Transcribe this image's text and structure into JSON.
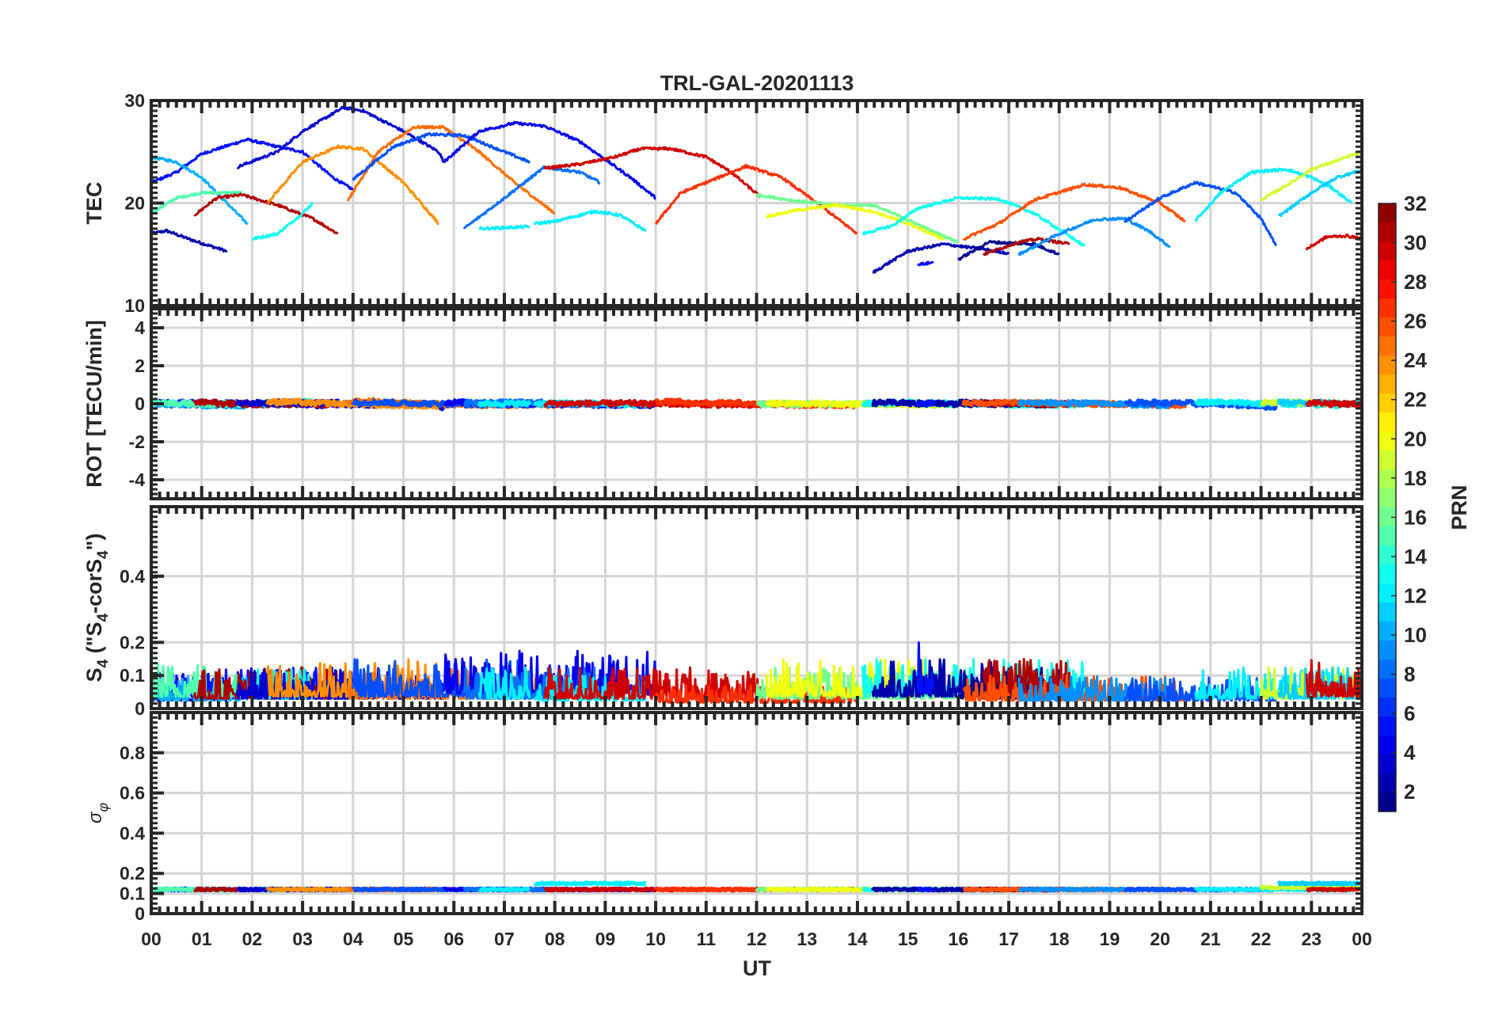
{
  "chart_data": {
    "type": "line",
    "title": "TRL-GAL-20201113",
    "xlabel": "UT",
    "xlim": [
      0,
      24
    ],
    "x_tick_labels": [
      "00",
      "01",
      "02",
      "03",
      "04",
      "05",
      "06",
      "07",
      "08",
      "09",
      "10",
      "11",
      "12",
      "13",
      "14",
      "15",
      "16",
      "17",
      "18",
      "19",
      "20",
      "21",
      "22",
      "23",
      "00"
    ],
    "grid": true,
    "panels": [
      {
        "id": "tec",
        "ylabel": "TEC",
        "ylim": [
          10,
          30
        ],
        "yticks": [
          10,
          20,
          30
        ]
      },
      {
        "id": "rot",
        "ylabel": "ROT [TECU/min]",
        "ylim": [
          -5,
          5
        ],
        "yticks": [
          -4,
          -2,
          0,
          2,
          4
        ]
      },
      {
        "id": "s4",
        "ylabel": "S4 (\"S4-corS4\")",
        "ylim": [
          0,
          0.61
        ],
        "yticks": [
          0,
          0.1,
          0.2,
          0.4
        ]
      },
      {
        "id": "sigma",
        "ylabel": "σφ",
        "ylim": [
          0,
          1
        ],
        "yticks": [
          0,
          0.1,
          0.2,
          0.4,
          0.6,
          0.8
        ]
      }
    ],
    "colorbar": {
      "label": "PRN",
      "range": [
        1,
        32
      ],
      "ticks": [
        2,
        4,
        6,
        8,
        10,
        12,
        14,
        16,
        18,
        20,
        22,
        24,
        26,
        28,
        30,
        32
      ],
      "colormap": "jet"
    },
    "series": [
      {
        "prn": 2,
        "s4": 0.04,
        "sigma": 0.12,
        "tec": [
          [
            0,
            17
          ],
          [
            0.3,
            17.3
          ],
          [
            0.8,
            16.4
          ],
          [
            1.5,
            15.3
          ]
        ]
      },
      {
        "prn": 5,
        "s4": 0.05,
        "sigma": 0.12,
        "tec": [
          [
            0,
            22
          ],
          [
            0.5,
            23
          ],
          [
            1,
            24.8
          ],
          [
            1.9,
            26.2
          ],
          [
            2.5,
            25.5
          ],
          [
            3,
            25
          ],
          [
            3.6,
            22.5
          ],
          [
            4,
            21.3
          ]
        ]
      },
      {
        "prn": 10,
        "s4": 0.04,
        "sigma": 0.12,
        "tec": [
          [
            0,
            24.5
          ],
          [
            0.5,
            24
          ],
          [
            1,
            22.5
          ],
          [
            1.5,
            20
          ],
          [
            1.9,
            18
          ]
        ]
      },
      {
        "prn": 15,
        "s4": 0.06,
        "sigma": 0.12,
        "tec": [
          [
            0,
            19
          ],
          [
            0.5,
            20.5
          ],
          [
            1,
            21
          ],
          [
            1.8,
            21
          ]
        ]
      },
      {
        "prn": 31,
        "s4": 0.05,
        "sigma": 0.12,
        "tec": [
          [
            0.85,
            18.8
          ],
          [
            1.3,
            20.5
          ],
          [
            1.8,
            20.8
          ],
          [
            2.5,
            19.8
          ],
          [
            3.2,
            18.5
          ],
          [
            3.7,
            17
          ]
        ]
      },
      {
        "prn": 13,
        "s4": 0.05,
        "sigma": 0.12,
        "tec": [
          [
            2,
            16.5
          ],
          [
            2.5,
            17
          ],
          [
            3,
            19
          ],
          [
            3.2,
            20
          ]
        ]
      },
      {
        "prn": 3,
        "s4": 0.05,
        "sigma": 0.12,
        "tec": [
          [
            1.7,
            23.5
          ],
          [
            2.5,
            25
          ],
          [
            3,
            27
          ],
          [
            3.8,
            29.3
          ],
          [
            4.2,
            29
          ],
          [
            5,
            27
          ],
          [
            5.7,
            25
          ],
          [
            5.8,
            24
          ]
        ]
      },
      {
        "prn": 24,
        "s4": 0.06,
        "sigma": 0.12,
        "tec": [
          [
            2.3,
            20
          ],
          [
            3,
            24
          ],
          [
            3.7,
            25.5
          ],
          [
            4.2,
            25.3
          ],
          [
            5,
            22
          ],
          [
            5.7,
            18
          ]
        ]
      },
      {
        "prn": 25,
        "s4": 0.05,
        "sigma": 0.12,
        "tec": [
          [
            3.9,
            20.3
          ],
          [
            4.5,
            25
          ],
          [
            5.2,
            27.4
          ],
          [
            5.8,
            27.4
          ],
          [
            6.5,
            25
          ],
          [
            7.2,
            22
          ],
          [
            8,
            19
          ]
        ]
      },
      {
        "prn": 7,
        "s4": 0.06,
        "sigma": 0.12,
        "tec": [
          [
            4,
            22.3
          ],
          [
            4.8,
            25.5
          ],
          [
            5.5,
            26.7
          ],
          [
            6.2,
            26.6
          ],
          [
            7,
            25
          ],
          [
            7.5,
            24
          ]
        ]
      },
      {
        "prn": 4,
        "s4": 0.07,
        "sigma": 0.12,
        "tec": [
          [
            5.8,
            24
          ],
          [
            6.5,
            27
          ],
          [
            7.2,
            27.8
          ],
          [
            7.8,
            27.5
          ],
          [
            8.5,
            26
          ],
          [
            9.5,
            22.5
          ],
          [
            10,
            20.5
          ]
        ]
      },
      {
        "prn": 8,
        "s4": 0.05,
        "sigma": 0.12,
        "tec": [
          [
            6.2,
            17.5
          ],
          [
            7,
            20.5
          ],
          [
            7.8,
            23.5
          ],
          [
            8.5,
            23
          ],
          [
            8.9,
            22
          ]
        ]
      },
      {
        "prn": 12,
        "s4": 0.05,
        "sigma": 0.12,
        "tec": [
          [
            6.5,
            17.5
          ],
          [
            7,
            17.6
          ],
          [
            7.5,
            17.7
          ]
        ]
      },
      {
        "prn": 12,
        "s4": 0.04,
        "sigma": 0.15,
        "tec": [
          [
            7.6,
            18
          ],
          [
            8,
            18.2
          ],
          [
            8.8,
            19.2
          ],
          [
            9.3,
            18.8
          ],
          [
            9.8,
            17.3
          ]
        ]
      },
      {
        "prn": 30,
        "s4": 0.05,
        "sigma": 0.12,
        "tec": [
          [
            7.8,
            23.4
          ],
          [
            8.5,
            23.8
          ],
          [
            9.2,
            24.5
          ],
          [
            9.7,
            25.3
          ],
          [
            10.3,
            25.3
          ],
          [
            11,
            24.5
          ],
          [
            11.5,
            23
          ],
          [
            12.1,
            20.5
          ]
        ]
      },
      {
        "prn": 27,
        "s4": 0.03,
        "sigma": 0.12,
        "tec": [
          [
            10,
            18
          ],
          [
            10.5,
            21
          ],
          [
            11,
            22
          ],
          [
            11.8,
            23.6
          ],
          [
            12.5,
            22.5
          ],
          [
            13.2,
            20
          ],
          [
            14,
            17
          ]
        ]
      },
      {
        "prn": 16,
        "s4": 0.05,
        "sigma": 0.12,
        "tec": [
          [
            12,
            20.8
          ],
          [
            12.8,
            20.2
          ],
          [
            13.6,
            19.8
          ],
          [
            14.3,
            19.8
          ],
          [
            14.8,
            18.8
          ],
          [
            15.6,
            17
          ],
          [
            16,
            16.2
          ]
        ]
      },
      {
        "prn": 20,
        "s4": 0.06,
        "sigma": 0.12,
        "tec": [
          [
            12.2,
            18.7
          ],
          [
            12.8,
            19.3
          ],
          [
            13.6,
            19.8
          ],
          [
            14.3,
            19.2
          ],
          [
            15,
            18
          ],
          [
            15.7,
            16.5
          ]
        ]
      },
      {
        "prn": 13,
        "s4": 0.06,
        "sigma": 0.12,
        "tec": [
          [
            14.1,
            17
          ],
          [
            14.7,
            17.8
          ],
          [
            15.2,
            19.5
          ],
          [
            16,
            20.5
          ],
          [
            16.8,
            20.4
          ],
          [
            17.5,
            19
          ],
          [
            18.2,
            16.8
          ],
          [
            18.5,
            15.8
          ]
        ]
      },
      {
        "prn": 2,
        "s4": 0.06,
        "sigma": 0.12,
        "tec": [
          [
            14.3,
            13.2
          ],
          [
            15,
            15.3
          ],
          [
            15.7,
            16
          ],
          [
            16.5,
            15.5
          ],
          [
            17,
            15.1
          ]
        ]
      },
      {
        "prn": 5,
        "s4": 0.08,
        "sigma": 0.12,
        "tec": [
          [
            15.2,
            14
          ],
          [
            15.5,
            14.2
          ]
        ]
      },
      {
        "prn": 1,
        "s4": 0.05,
        "sigma": 0.12,
        "tec": [
          [
            16,
            14.5
          ],
          [
            16.6,
            16.2
          ],
          [
            17.5,
            16
          ],
          [
            18,
            15
          ]
        ]
      },
      {
        "prn": 31,
        "s4": 0.06,
        "sigma": 0.12,
        "tec": [
          [
            16.5,
            15
          ],
          [
            17.2,
            16.2
          ],
          [
            17.6,
            16.5
          ],
          [
            18.2,
            16
          ]
        ]
      },
      {
        "prn": 26,
        "s4": 0.04,
        "sigma": 0.12,
        "tec": [
          [
            16.1,
            16.5
          ],
          [
            16.8,
            18
          ],
          [
            17.5,
            20.3
          ],
          [
            18.5,
            21.8
          ],
          [
            19.2,
            21.5
          ],
          [
            20,
            20
          ],
          [
            20.5,
            18.2
          ]
        ]
      },
      {
        "prn": 9,
        "s4": 0.04,
        "sigma": 0.12,
        "tec": [
          [
            17.2,
            15
          ],
          [
            18,
            17
          ],
          [
            18.7,
            18.4
          ],
          [
            19.3,
            18.5
          ],
          [
            19.8,
            17.2
          ],
          [
            20.2,
            15.7
          ]
        ]
      },
      {
        "prn": 7,
        "s4": 0.04,
        "sigma": 0.12,
        "tec": [
          [
            19.3,
            18.2
          ],
          [
            20,
            20.5
          ],
          [
            20.7,
            22
          ],
          [
            21.5,
            21
          ],
          [
            22,
            18.5
          ],
          [
            22.3,
            15.8
          ]
        ]
      },
      {
        "prn": 12,
        "s4": 0.05,
        "sigma": 0.12,
        "tec": [
          [
            20.7,
            18.3
          ],
          [
            21.2,
            21
          ],
          [
            21.8,
            23
          ],
          [
            22.5,
            23.3
          ],
          [
            23,
            22.5
          ],
          [
            23.4,
            21.5
          ],
          [
            23.8,
            20
          ]
        ]
      },
      {
        "prn": 19,
        "s4": 0.05,
        "sigma": 0.13,
        "tec": [
          [
            22,
            20.3
          ],
          [
            22.6,
            22
          ],
          [
            23,
            23.3
          ],
          [
            23.6,
            24.3
          ],
          [
            24,
            25
          ]
        ]
      },
      {
        "prn": 11,
        "s4": 0.05,
        "sigma": 0.15,
        "tec": [
          [
            22.35,
            18.7
          ],
          [
            23,
            21
          ],
          [
            23.5,
            22.5
          ],
          [
            24,
            23.2
          ]
        ]
      },
      {
        "prn": 30,
        "s4": 0.06,
        "sigma": 0.12,
        "tec": [
          [
            22.9,
            15.5
          ],
          [
            23.3,
            16.7
          ],
          [
            23.7,
            16.8
          ],
          [
            24,
            16.5
          ]
        ]
      }
    ]
  }
}
